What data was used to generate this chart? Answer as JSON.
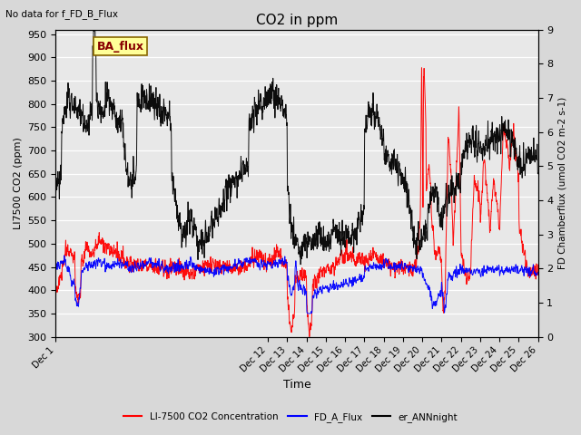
{
  "title": "CO2 in ppm",
  "top_left_text": "No data for f_FD_B_Flux",
  "ba_flux_label": "BA_flux",
  "xlabel": "Time",
  "ylabel_left": "LI7500 CO2 (ppm)",
  "ylabel_right": "FD Chamberflux (umol CO2 m-2 s-1)",
  "xlim_days": [
    1,
    26
  ],
  "ylim_left": [
    300,
    960
  ],
  "ylim_right": [
    0.0,
    9.0
  ],
  "yticks_left": [
    300,
    350,
    400,
    450,
    500,
    550,
    600,
    650,
    700,
    750,
    800,
    850,
    900,
    950
  ],
  "yticks_right": [
    0.0,
    1.0,
    2.0,
    3.0,
    4.0,
    5.0,
    6.0,
    7.0,
    8.0,
    9.0
  ],
  "xtick_positions": [
    1,
    12,
    13,
    14,
    15,
    16,
    17,
    18,
    19,
    20,
    21,
    22,
    23,
    24,
    25,
    26
  ],
  "xtick_labels": [
    "Dec 1",
    "Dec 12",
    "Dec 13",
    "Dec 14",
    "Dec 15",
    "Dec 16",
    "Dec 17",
    "Dec 18",
    "Dec 19",
    "Dec 20",
    "Dec 21",
    "Dec 22",
    "Dec 23",
    "Dec 24",
    "Dec 25",
    "Dec 26"
  ],
  "bg_color": "#d8d8d8",
  "plot_bg_color": "#e8e8e8",
  "ba_flux_box_facecolor": "#ffff99",
  "ba_flux_box_edgecolor": "#886600",
  "ba_flux_text_color": "#880000"
}
